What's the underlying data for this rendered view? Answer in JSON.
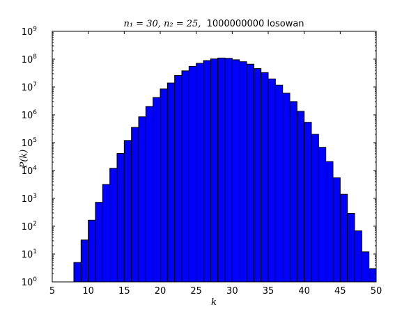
{
  "chart_data": {
    "type": "bar",
    "title_math": "n₁ = 30, n₂ = 25,",
    "title_text": "1000000000 losowan",
    "xlabel": "k",
    "ylabel": "P(k)",
    "xlim": [
      5,
      50
    ],
    "ylim": [
      1,
      1000000000
    ],
    "yscale": "log",
    "xticks": [
      5,
      10,
      15,
      20,
      25,
      30,
      35,
      40,
      45,
      50
    ],
    "yticks_exp": [
      0,
      1,
      2,
      3,
      4,
      5,
      6,
      7,
      8,
      9
    ],
    "grid": false,
    "bar_color": "#0000ff",
    "edge_color": "#000000",
    "bin_width": 1,
    "bins": [
      8,
      9,
      10,
      11,
      12,
      13,
      14,
      15,
      16,
      17,
      18,
      19,
      20,
      21,
      22,
      23,
      24,
      25,
      26,
      27,
      28,
      29,
      30,
      31,
      32,
      33,
      34,
      35,
      36,
      37,
      38,
      39,
      40,
      41,
      42,
      43,
      44,
      45,
      46,
      47,
      48,
      49
    ],
    "values": [
      5,
      32,
      165,
      720,
      3160,
      12000,
      41000,
      120000,
      355000,
      850000,
      2000000,
      4200000,
      8500000,
      14000000,
      26000000,
      38000000,
      55000000,
      71000000,
      89000000,
      102000000,
      110000000,
      107000000,
      95000000,
      81000000,
      66000000,
      46000000,
      33000000,
      19500000,
      11700000,
      6000000,
      3000000,
      1340000,
      540000,
      200000,
      68000,
      21000,
      5500,
      1400,
      290,
      68,
      12,
      3
    ]
  }
}
